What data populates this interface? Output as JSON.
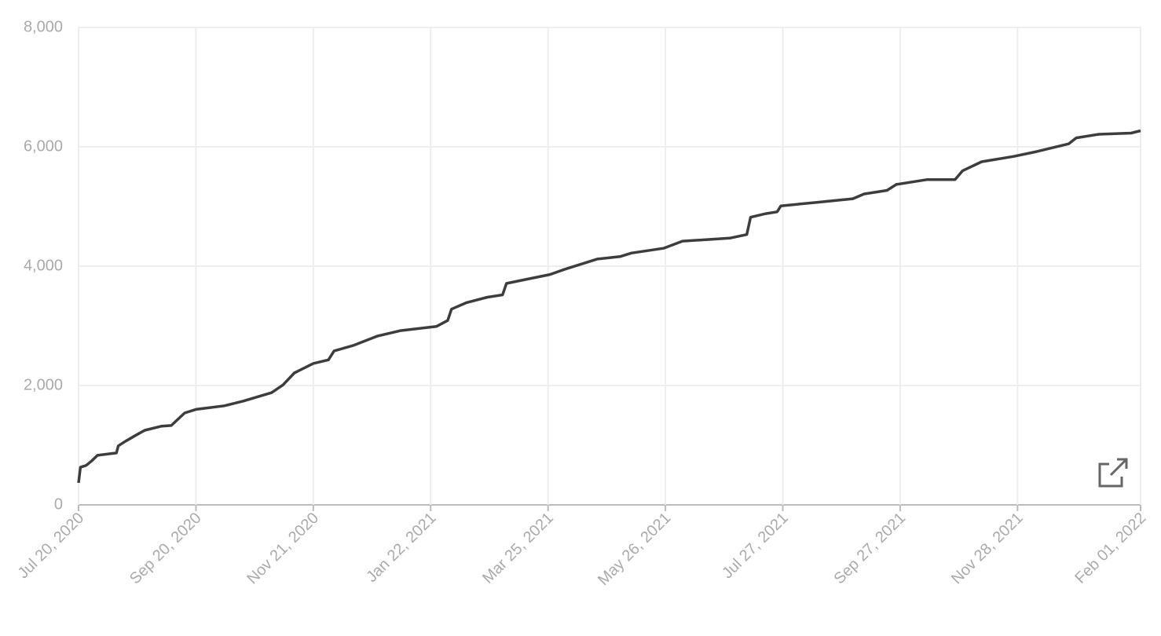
{
  "chart_data": {
    "type": "line",
    "color": "#3d3d3d",
    "x": [
      "2020-07-20",
      "2020-07-21",
      "2020-07-24",
      "2020-07-27",
      "2020-07-30",
      "2020-08-09",
      "2020-08-10",
      "2020-08-14",
      "2020-08-20",
      "2020-08-24",
      "2020-09-02",
      "2020-09-07",
      "2020-09-14",
      "2020-09-20",
      "2020-10-05",
      "2020-10-15",
      "2020-10-30",
      "2020-11-05",
      "2020-11-11",
      "2020-11-21",
      "2020-11-29",
      "2020-12-02",
      "2020-12-12",
      "2020-12-25",
      "2021-01-06",
      "2021-01-25",
      "2021-01-31",
      "2021-02-02",
      "2021-02-10",
      "2021-02-21",
      "2021-03-01",
      "2021-03-03",
      "2021-03-09",
      "2021-03-26",
      "2021-04-03",
      "2021-04-20",
      "2021-05-02",
      "2021-05-08",
      "2021-05-25",
      "2021-06-04",
      "2021-06-29",
      "2021-07-08",
      "2021-07-10",
      "2021-07-18",
      "2021-07-24",
      "2021-07-26",
      "2021-08-14",
      "2021-09-02",
      "2021-09-08",
      "2021-09-20",
      "2021-09-25",
      "2021-10-11",
      "2021-10-26",
      "2021-10-30",
      "2021-11-09",
      "2021-11-26",
      "2021-12-08",
      "2021-12-25",
      "2021-12-29",
      "2022-01-10",
      "2022-01-27",
      "2022-02-01"
    ],
    "values": [
      370,
      630,
      660,
      740,
      830,
      870,
      990,
      1070,
      1180,
      1250,
      1320,
      1330,
      1540,
      1600,
      1660,
      1740,
      1880,
      2010,
      2210,
      2370,
      2430,
      2580,
      2670,
      2830,
      2920,
      2990,
      3090,
      3280,
      3390,
      3480,
      3520,
      3710,
      3750,
      3860,
      3950,
      4120,
      4160,
      4220,
      4300,
      4420,
      4470,
      4530,
      4820,
      4880,
      4910,
      5010,
      5070,
      5130,
      5210,
      5270,
      5370,
      5450,
      5450,
      5600,
      5750,
      5840,
      5920,
      6050,
      6150,
      6210,
      6230,
      6270
    ],
    "xlim": [
      "2020-07-20",
      "2022-02-01"
    ],
    "xticks": [
      {
        "value": "2020-07-20",
        "label": "Jul 20, 2020"
      },
      {
        "value": "2020-09-20",
        "label": "Sep 20, 2020"
      },
      {
        "value": "2020-11-21",
        "label": "Nov 21, 2020"
      },
      {
        "value": "2021-01-22",
        "label": "Jan 22, 2021"
      },
      {
        "value": "2021-03-25",
        "label": "Mar 25, 2021"
      },
      {
        "value": "2021-05-26",
        "label": "May 26, 2021"
      },
      {
        "value": "2021-07-27",
        "label": "Jul 27, 2021"
      },
      {
        "value": "2021-09-27",
        "label": "Sep 27, 2021"
      },
      {
        "value": "2021-11-28",
        "label": "Nov 28, 2021"
      },
      {
        "value": "2022-02-01",
        "label": "Feb 01, 2022"
      }
    ],
    "ylim": [
      0,
      8000
    ],
    "yticks": [
      0,
      {
        "value": 2000,
        "label": "2,000"
      },
      {
        "value": 4000,
        "label": "4,000"
      },
      {
        "value": 6000,
        "label": "6,000"
      },
      {
        "value": 8000,
        "label": "8,000"
      }
    ],
    "grid": true
  }
}
